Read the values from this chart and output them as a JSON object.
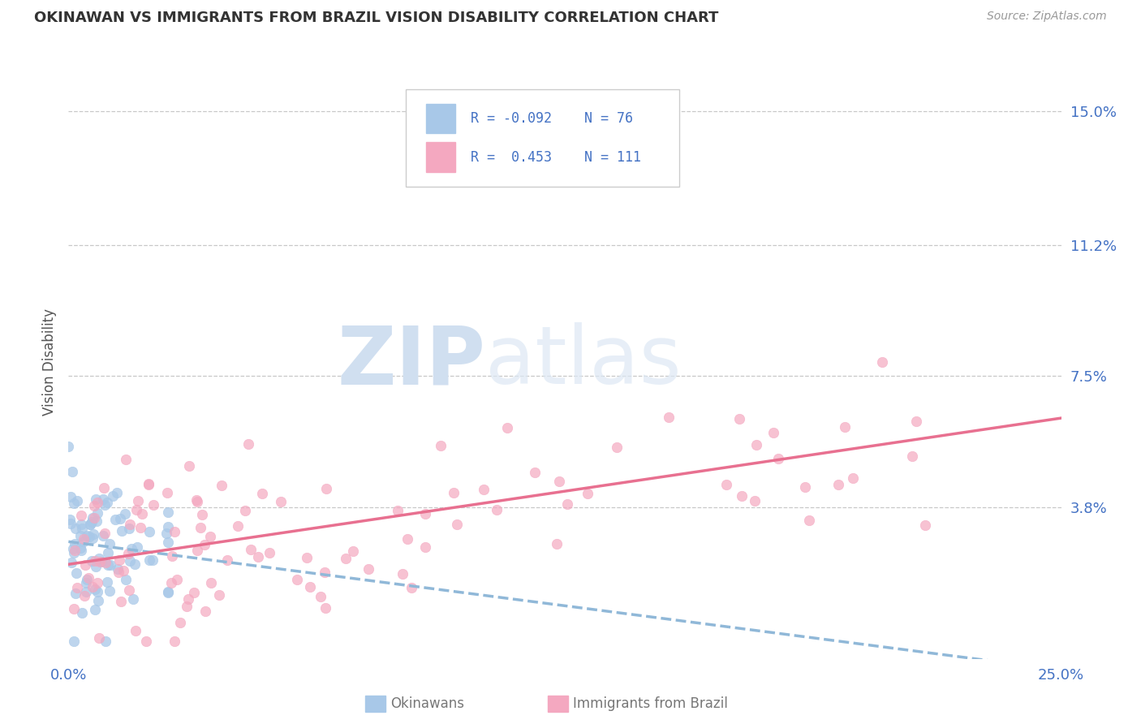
{
  "title": "OKINAWAN VS IMMIGRANTS FROM BRAZIL VISION DISABILITY CORRELATION CHART",
  "source": "Source: ZipAtlas.com",
  "ylabel": "Vision Disability",
  "color_okinawan": "#a8c8e8",
  "color_brazil": "#f4a8c0",
  "color_okinawan_line": "#90b8d8",
  "color_brazil_line": "#e87090",
  "color_text_blue": "#4472c4",
  "color_grid": "#c8c8c8",
  "color_bg": "#ffffff",
  "xlim": [
    0.0,
    0.25
  ],
  "ylim": [
    -0.005,
    0.163
  ],
  "ytick_values": [
    0.038,
    0.075,
    0.112,
    0.15
  ],
  "ytick_labels": [
    "3.8%",
    "7.5%",
    "11.2%",
    "15.0%"
  ],
  "xtick_values": [
    0.0,
    0.25
  ],
  "xtick_labels": [
    "0.0%",
    "25.0%"
  ],
  "seed": 99
}
